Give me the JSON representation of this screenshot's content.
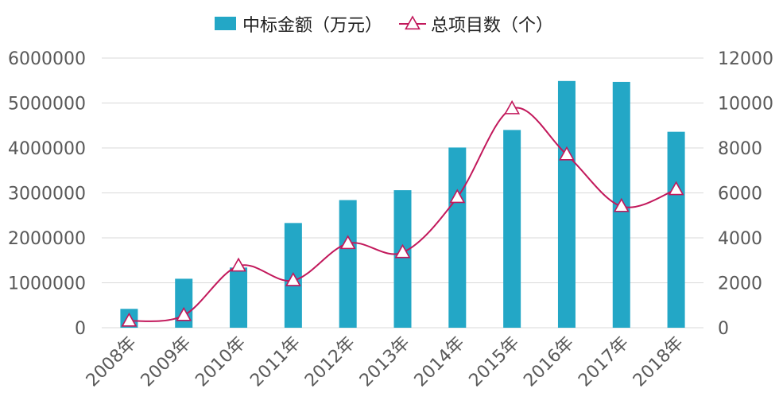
{
  "chart_data": {
    "type": "bar",
    "title": "",
    "xlabel": "",
    "ylabel": "",
    "categories": [
      "2008年",
      "2009年",
      "2010年",
      "2011年",
      "2012年",
      "2013年",
      "2014年",
      "2015年",
      "2016年",
      "2017年",
      "2018年"
    ],
    "series": [
      {
        "name": "中标金额（万元）",
        "type": "bar",
        "axis": "left",
        "color": "#23A7C6",
        "values": [
          420000,
          1090000,
          1340000,
          2330000,
          2840000,
          3060000,
          4010000,
          4400000,
          5490000,
          5470000,
          4360000
        ]
      },
      {
        "name": "总项目数（个）",
        "type": "line",
        "axis": "right",
        "color": "#C2185B",
        "marker": "triangle",
        "smooth": true,
        "values": [
          300,
          550,
          2750,
          2100,
          3750,
          3350,
          5800,
          9750,
          7700,
          5400,
          6150
        ]
      }
    ],
    "ylim": [
      0,
      6000000
    ],
    "yticks": [
      "0",
      "1000000",
      "2000000",
      "3000000",
      "4000000",
      "5000000",
      "6000000"
    ],
    "y2lim": [
      0,
      12000
    ],
    "y2ticks": [
      "0",
      "2000",
      "4000",
      "6000",
      "8000",
      "10000",
      "12000"
    ],
    "grid": true,
    "legend_position": "top-center"
  }
}
